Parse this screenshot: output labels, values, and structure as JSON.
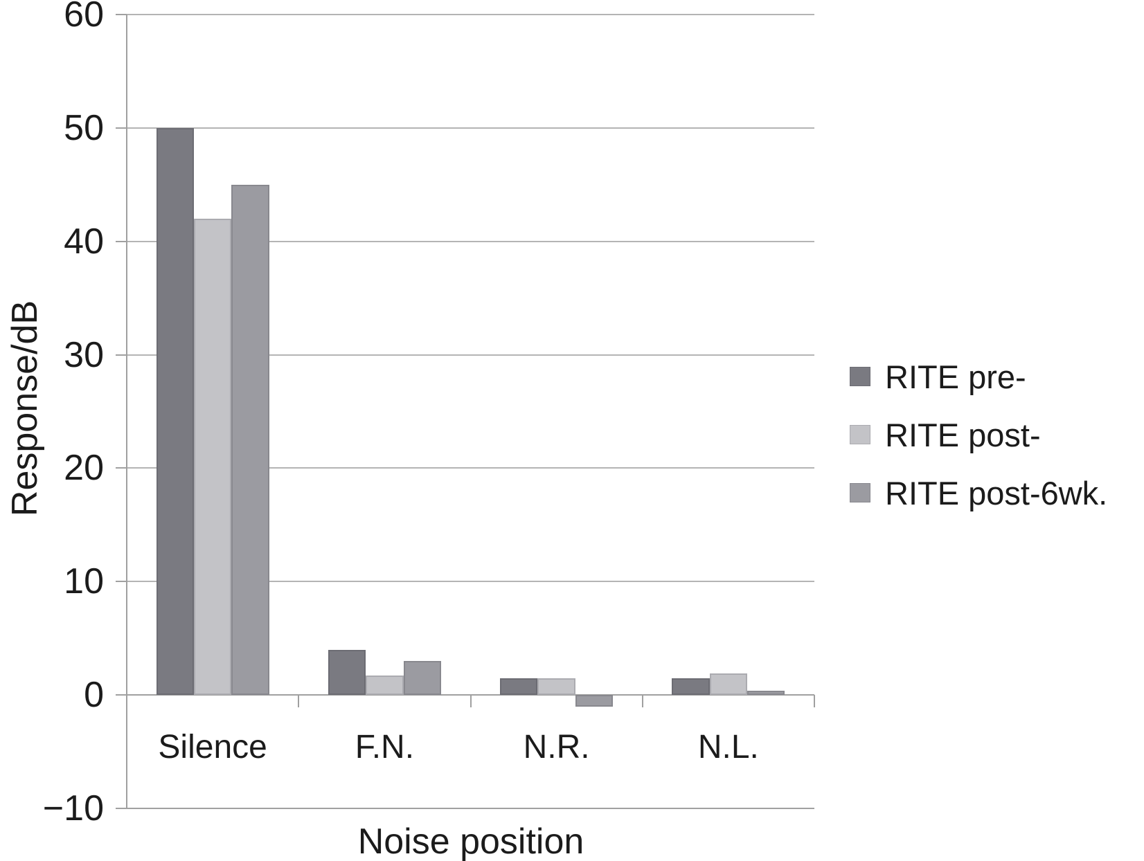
{
  "figure": {
    "background": "#ffffff",
    "text_color": "#1b1b1b",
    "gridline_color": "#b4b4b4",
    "axis_color": "#a0a0a0"
  },
  "chart_data": {
    "type": "bar",
    "title": "",
    "xlabel": "Noise position",
    "ylabel": "Response/dB",
    "categories": [
      "Silence",
      "F.N.",
      "N.R.",
      "N.L."
    ],
    "series": [
      {
        "name": "RITE pre-",
        "color": "#7a7a81",
        "edge_color": "#6c6c73",
        "values": [
          50,
          4,
          1.5,
          1.5
        ]
      },
      {
        "name": "RITE post-",
        "color": "#c3c3c7",
        "edge_color": "#ababb0",
        "values": [
          42,
          1.7,
          1.5,
          1.9
        ]
      },
      {
        "name": "RITE post-6wk.",
        "color": "#9b9ba1",
        "edge_color": "#88888e",
        "values": [
          45,
          3,
          -1,
          0.4
        ]
      }
    ],
    "ylim": [
      -10,
      60
    ],
    "yticks": [
      60,
      50,
      40,
      30,
      20,
      10,
      0,
      -10
    ],
    "grid": true,
    "legend_position": "right"
  }
}
